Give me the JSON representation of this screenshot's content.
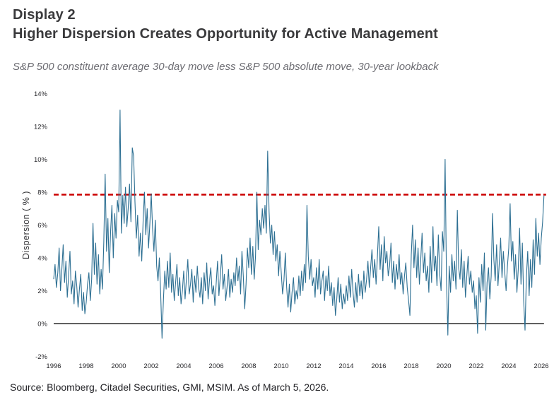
{
  "header": {
    "display_label": "Display 2",
    "title": "Higher Dispersion Creates Opportunity for Active Management",
    "subtitle": "S&P 500 constituent average 30-day move less S&P 500 absolute move, 30-year lookback"
  },
  "footer": {
    "source": "Source: Bloomberg, Citadel Securities, GMI, MSIM. As of March 5, 2026."
  },
  "colors": {
    "series_line": "#2e7093",
    "threshold_line": "#cc0000",
    "zero_axis": "#000000",
    "axis_text": "#27272b",
    "title_text": "#3a3a3c",
    "subtitle_text": "#6c6c72"
  },
  "chart_data": {
    "type": "line",
    "title": "",
    "xlabel": "",
    "ylabel": "Dispersion ( % )",
    "x_start_year": 1996,
    "x_step_months": 1,
    "x_end_label": 2026,
    "ylim": [
      -2,
      14
    ],
    "grid": false,
    "legend": "none",
    "y_ticks": [
      {
        "value": 14,
        "label": "14%"
      },
      {
        "value": 12,
        "label": "12%"
      },
      {
        "value": 10,
        "label": "10%"
      },
      {
        "value": 8,
        "label": "8%"
      },
      {
        "value": 6,
        "label": "6%"
      },
      {
        "value": 4,
        "label": "4%"
      },
      {
        "value": 2,
        "label": "2%"
      },
      {
        "value": 0,
        "label": "0%"
      },
      {
        "value": -2,
        "label": "-2%"
      }
    ],
    "x_ticks": [
      1996,
      1998,
      2000,
      2002,
      2004,
      2006,
      2008,
      2010,
      2012,
      2014,
      2016,
      2018,
      2020,
      2022,
      2024,
      2026
    ],
    "threshold": {
      "value": 7.85,
      "color": "#cc0000",
      "style": "dashed"
    },
    "series": [
      {
        "name": "Dispersion",
        "color": "#2e7093",
        "values": [
          2.7,
          3.6,
          2.2,
          3.1,
          4.6,
          2.0,
          3.3,
          4.8,
          2.5,
          3.8,
          1.6,
          2.9,
          4.4,
          1.8,
          2.6,
          1.2,
          3.2,
          2.3,
          1.0,
          2.1,
          3.0,
          0.8,
          1.9,
          0.6,
          1.3,
          2.4,
          3.1,
          1.4,
          2.7,
          6.1,
          3.0,
          4.9,
          2.4,
          4.2,
          1.8,
          3.3,
          2.1,
          5.0,
          9.1,
          4.4,
          6.4,
          3.1,
          5.6,
          7.2,
          4.0,
          6.7,
          5.2,
          7.5,
          6.8,
          13.0,
          5.5,
          7.8,
          6.1,
          8.3,
          5.9,
          7.0,
          8.5,
          6.2,
          10.7,
          10.2,
          7.4,
          5.2,
          6.6,
          4.1,
          5.5,
          3.8,
          6.2,
          8.0,
          5.4,
          7.0,
          4.6,
          6.1,
          7.9,
          5.8,
          4.4,
          6.3,
          3.5,
          2.6,
          4.0,
          1.8,
          -0.9,
          1.5,
          3.2,
          2.1,
          3.8,
          2.2,
          4.3,
          1.9,
          3.0,
          1.4,
          2.5,
          3.6,
          1.7,
          2.8,
          1.2,
          2.0,
          3.2,
          1.5,
          2.7,
          3.9,
          1.8,
          2.4,
          3.3,
          1.3,
          2.9,
          1.9,
          3.5,
          2.2,
          1.6,
          2.8,
          1.2,
          3.1,
          2.0,
          3.7,
          1.5,
          2.6,
          3.4,
          1.8,
          2.3,
          1.1,
          2.5,
          3.8,
          1.7,
          2.9,
          4.2,
          2.1,
          3.0,
          1.4,
          2.2,
          3.3,
          1.6,
          2.7,
          1.9,
          3.1,
          2.3,
          4.0,
          2.6,
          3.5,
          1.8,
          4.4,
          2.9,
          0.9,
          2.4,
          4.6,
          3.4,
          5.2,
          3.0,
          4.7,
          2.7,
          4.1,
          8.0,
          4.5,
          6.3,
          5.4,
          7.0,
          5.8,
          7.2,
          5.5,
          10.5,
          6.8,
          4.9,
          6.0,
          4.2,
          5.6,
          3.8,
          4.8,
          2.9,
          4.4,
          3.1,
          1.8,
          2.6,
          4.3,
          2.2,
          1.0,
          2.4,
          0.7,
          1.9,
          2.8,
          1.2,
          2.0,
          1.5,
          2.9,
          1.7,
          3.2,
          2.0,
          3.6,
          2.5,
          7.2,
          4.1,
          2.7,
          3.9,
          2.3,
          2.8,
          1.6,
          3.4,
          2.1,
          3.9,
          1.8,
          2.6,
          3.2,
          1.4,
          2.9,
          2.0,
          3.5,
          1.7,
          2.5,
          1.1,
          2.2,
          0.5,
          1.5,
          2.8,
          1.3,
          2.4,
          0.9,
          1.8,
          1.2,
          2.3,
          1.4,
          2.9,
          1.6,
          3.3,
          1.9,
          1.0,
          2.5,
          1.3,
          3.0,
          1.7,
          2.6,
          1.5,
          3.2,
          1.9,
          2.7,
          3.8,
          2.2,
          3.4,
          4.5,
          2.8,
          3.9,
          2.4,
          4.1,
          5.9,
          3.3,
          4.8,
          2.6,
          5.3,
          3.7,
          4.4,
          2.9,
          3.5,
          4.9,
          2.5,
          3.8,
          2.1,
          3.6,
          2.7,
          4.2,
          2.4,
          3.1,
          1.8,
          2.9,
          3.7,
          2.2,
          1.4,
          0.5,
          4.2,
          6.0,
          3.4,
          5.1,
          2.8,
          4.6,
          2.4,
          3.9,
          5.5,
          3.1,
          4.3,
          2.6,
          3.5,
          1.9,
          4.7,
          2.5,
          5.9,
          3.2,
          4.1,
          2.3,
          5.4,
          3.0,
          2.0,
          5.6,
          4.4,
          10.0,
          2.8,
          -0.7,
          3.5,
          1.9,
          4.2,
          2.6,
          3.8,
          2.1,
          6.9,
          3.4,
          2.7,
          4.5,
          2.2,
          3.8,
          1.6,
          2.9,
          4.1,
          2.4,
          3.2,
          1.9,
          2.6,
          0.9,
          1.7,
          -0.6,
          2.8,
          1.3,
          3.6,
          2.0,
          4.3,
          -0.4,
          2.5,
          3.4,
          1.5,
          2.9,
          6.7,
          3.9,
          2.6,
          4.8,
          2.3,
          3.7,
          5.2,
          2.8,
          4.4,
          3.1,
          2.0,
          3.5,
          4.6,
          7.3,
          3.8,
          5.0,
          2.7,
          4.2,
          1.9,
          3.3,
          5.8,
          2.4,
          4.9,
          1.4,
          -0.4,
          2.8,
          4.4,
          1.7,
          3.9,
          2.2,
          5.1,
          3.0,
          6.4,
          4.1,
          5.5,
          3.6,
          5.2,
          6.2,
          7.8
        ]
      }
    ]
  }
}
